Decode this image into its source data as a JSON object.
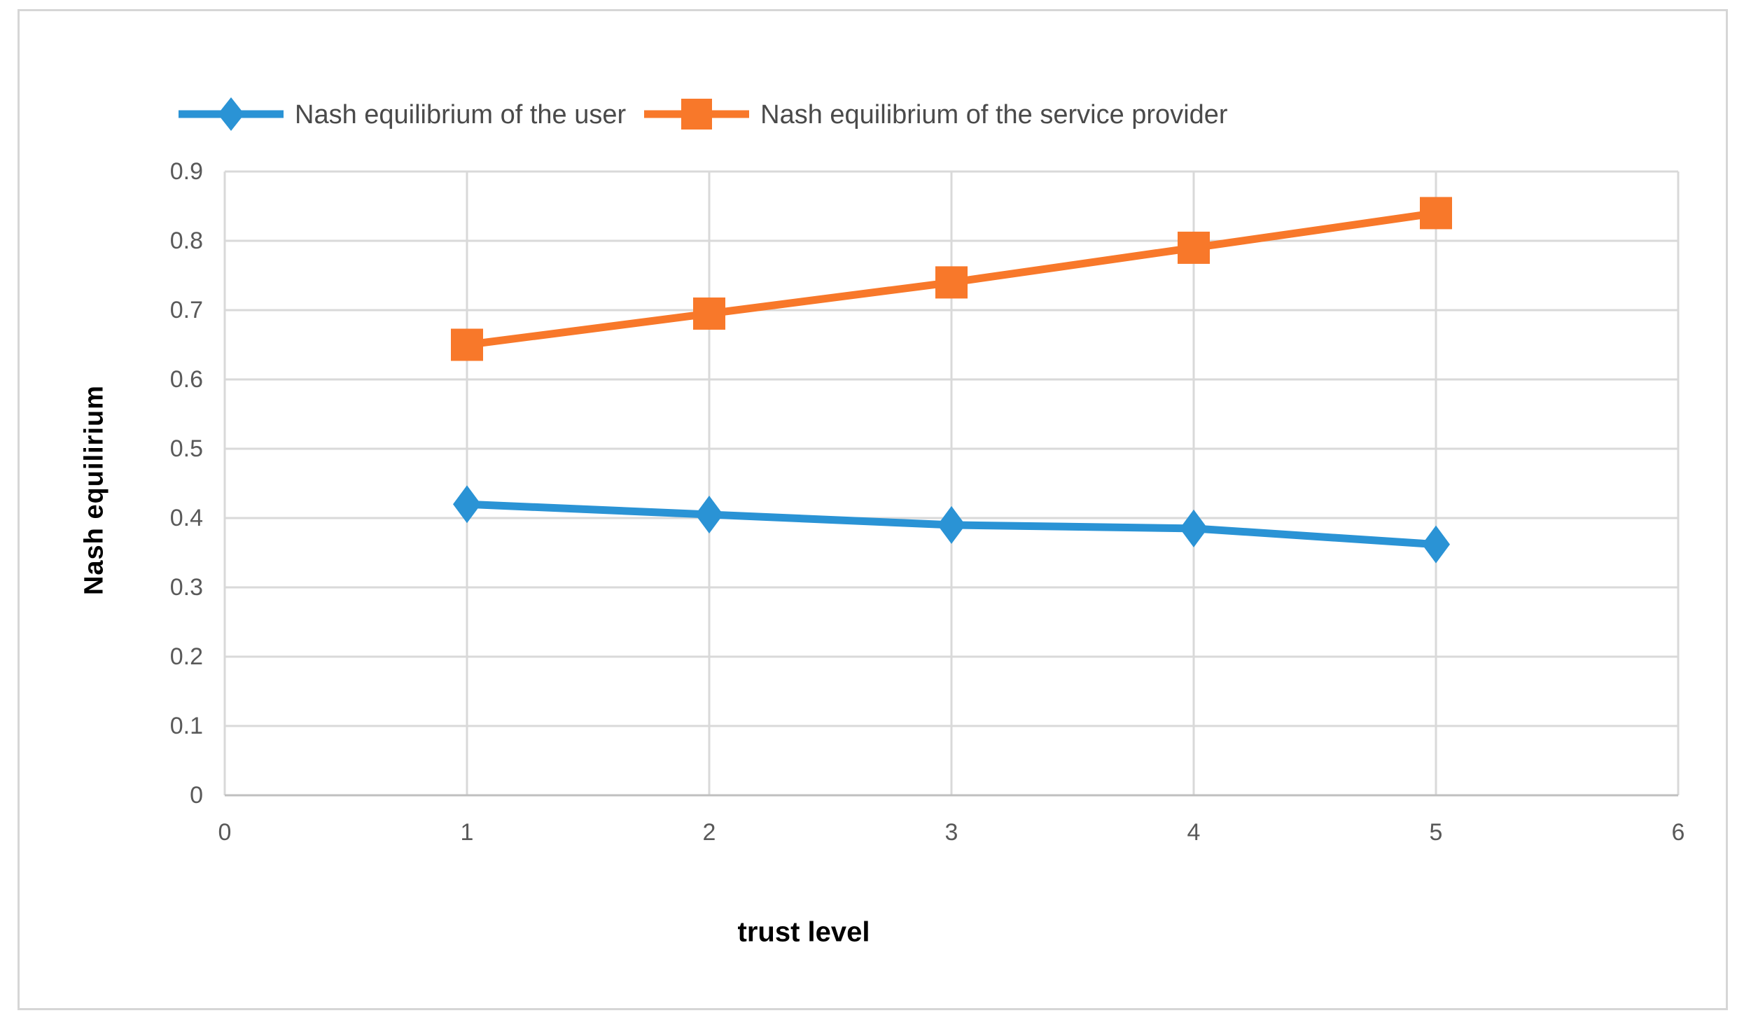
{
  "figure": {
    "background": "#ffffff",
    "border_color": "#d6d6d6"
  },
  "colors": {
    "grid": "#d9d9d9",
    "axis_line": "#bfbfbf",
    "tick_text": "#595959",
    "legend_text": "#4a4a4a",
    "series_user": "#2a93d5",
    "series_provider": "#f8782a"
  },
  "chart_data": {
    "type": "line",
    "x": [
      1,
      2,
      3,
      4,
      5
    ],
    "series": [
      {
        "name": "Nash equilibrium of the user",
        "marker": "diamond",
        "color": "#2a93d5",
        "values": [
          0.42,
          0.405,
          0.39,
          0.385,
          0.362
        ]
      },
      {
        "name": "Nash equilibrium of the service provider",
        "marker": "square",
        "color": "#f8782a",
        "values": [
          0.65,
          0.695,
          0.74,
          0.79,
          0.84
        ]
      }
    ],
    "title": "",
    "xlabel": "trust level",
    "ylabel": "Nash  equilirium",
    "xlim": [
      0,
      6
    ],
    "ylim": [
      0,
      0.9
    ],
    "x_ticks": [
      "0",
      "1",
      "2",
      "3",
      "4",
      "5",
      "6"
    ],
    "y_ticks": [
      "0",
      "0.1",
      "0.2",
      "0.3",
      "0.4",
      "0.5",
      "0.6",
      "0.7",
      "0.8",
      "0.9"
    ],
    "grid": true,
    "legend_position": "top"
  }
}
